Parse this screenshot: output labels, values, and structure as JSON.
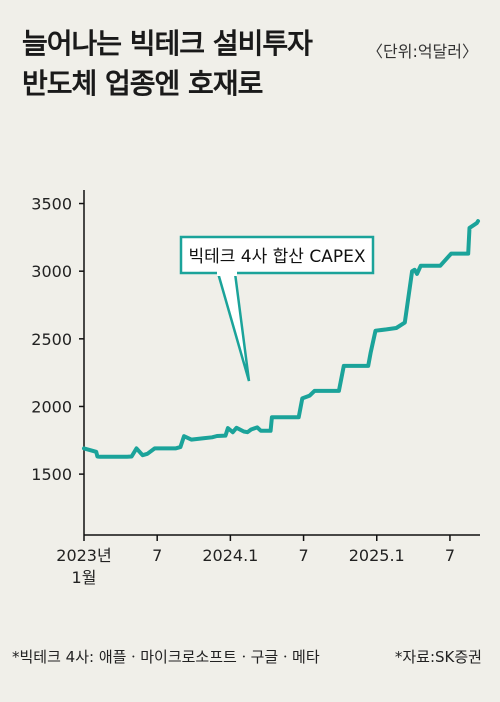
{
  "title": {
    "line1": "늘어나는 빅테크 설비투자",
    "line2": "반도체 업종엔 호재로"
  },
  "unit": "〈단위:억달러〉",
  "footnote": "*빅테크 4사: 애플ㆍ마이크로소프트ㆍ구글ㆍ메타",
  "source": "*자료:SK증권",
  "colors": {
    "line": "#1ba39a",
    "axis": "#111111",
    "background": "#f0efe9"
  },
  "chart_data": {
    "type": "line",
    "annotation": "빅테크 4사 합산 CAPEX",
    "ylim": [
      1050,
      3600
    ],
    "yticks": [
      1500,
      2000,
      2500,
      3000,
      3500
    ],
    "xlim": [
      0,
      32.3
    ],
    "xticks": [
      {
        "x": 0,
        "line1": "2023년",
        "line2": "1월"
      },
      {
        "x": 6,
        "line1": "7",
        "line2": ""
      },
      {
        "x": 12,
        "line1": "2024.1",
        "line2": ""
      },
      {
        "x": 18,
        "line1": "7",
        "line2": ""
      },
      {
        "x": 24,
        "line1": "2025.1",
        "line2": ""
      },
      {
        "x": 30,
        "line1": "7",
        "line2": ""
      }
    ],
    "points": [
      [
        0,
        1690
      ],
      [
        1,
        1665
      ],
      [
        1.1,
        1630
      ],
      [
        1.3,
        1628
      ],
      [
        3.5,
        1628
      ],
      [
        3.9,
        1630
      ],
      [
        4.3,
        1690
      ],
      [
        4.8,
        1640
      ],
      [
        5.2,
        1650
      ],
      [
        5.8,
        1690
      ],
      [
        7.5,
        1690
      ],
      [
        7.9,
        1700
      ],
      [
        8.2,
        1780
      ],
      [
        8.8,
        1755
      ],
      [
        9.8,
        1765
      ],
      [
        10.5,
        1772
      ],
      [
        10.9,
        1782
      ],
      [
        11.6,
        1785
      ],
      [
        11.8,
        1840
      ],
      [
        12.2,
        1810
      ],
      [
        12.5,
        1842
      ],
      [
        13.1,
        1815
      ],
      [
        13.4,
        1810
      ],
      [
        13.7,
        1830
      ],
      [
        14.2,
        1845
      ],
      [
        14.5,
        1820
      ],
      [
        15.0,
        1820
      ],
      [
        15.3,
        1820
      ],
      [
        15.4,
        1920
      ],
      [
        17.4,
        1920
      ],
      [
        17.6,
        1920
      ],
      [
        17.9,
        2060
      ],
      [
        18.5,
        2080
      ],
      [
        18.9,
        2115
      ],
      [
        20.9,
        2115
      ],
      [
        21.3,
        2300
      ],
      [
        23.0,
        2300
      ],
      [
        23.3,
        2300
      ],
      [
        23.5,
        2400
      ],
      [
        23.9,
        2560
      ],
      [
        24.8,
        2570
      ],
      [
        25.6,
        2580
      ],
      [
        26.3,
        2620
      ],
      [
        26.9,
        3000
      ],
      [
        27.1,
        3010
      ],
      [
        27.3,
        2980
      ],
      [
        27.6,
        3040
      ],
      [
        29.2,
        3040
      ],
      [
        29.9,
        3110
      ],
      [
        30.1,
        3130
      ],
      [
        31.5,
        3130
      ],
      [
        31.6,
        3320
      ],
      [
        32.2,
        3355
      ],
      [
        32.3,
        3370
      ]
    ]
  }
}
